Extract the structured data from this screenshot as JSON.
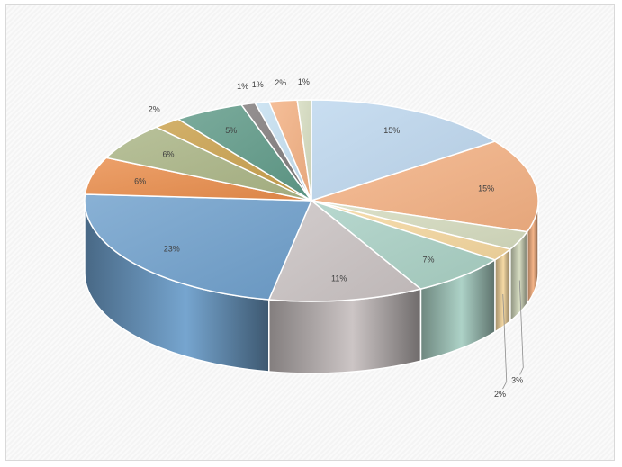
{
  "chart_data": {
    "type": "pie",
    "three_d": true,
    "legend": "none",
    "slices": [
      {
        "label": "15%",
        "value": 15,
        "color": "#bdd7ee"
      },
      {
        "label": "15%",
        "value": 15,
        "color": "#f4b183"
      },
      {
        "label": "3%",
        "value": 3,
        "color": "#d6dcc0"
      },
      {
        "label": "2%",
        "value": 2,
        "color": "#f6d8a0"
      },
      {
        "label": "7%",
        "value": 7,
        "color": "#a9d0c4"
      },
      {
        "label": "11%",
        "value": 11,
        "color": "#c9c2c2"
      },
      {
        "label": "23%",
        "value": 23,
        "color": "#6fa0cc"
      },
      {
        "label": "6%",
        "value": 6,
        "color": "#e98c4a"
      },
      {
        "label": "6%",
        "value": 6,
        "color": "#aab585"
      },
      {
        "label": "2%",
        "value": 2,
        "color": "#c9a04b"
      },
      {
        "label": "5%",
        "value": 5,
        "color": "#5f9a88"
      },
      {
        "label": "1%",
        "value": 1,
        "color": "#7f7a7a"
      },
      {
        "label": "1%",
        "value": 1,
        "color": "#c5dff0"
      },
      {
        "label": "2%",
        "value": 2,
        "color": "#f4b183"
      },
      {
        "label": "1%",
        "value": 1,
        "color": "#d6dcc0"
      }
    ]
  }
}
